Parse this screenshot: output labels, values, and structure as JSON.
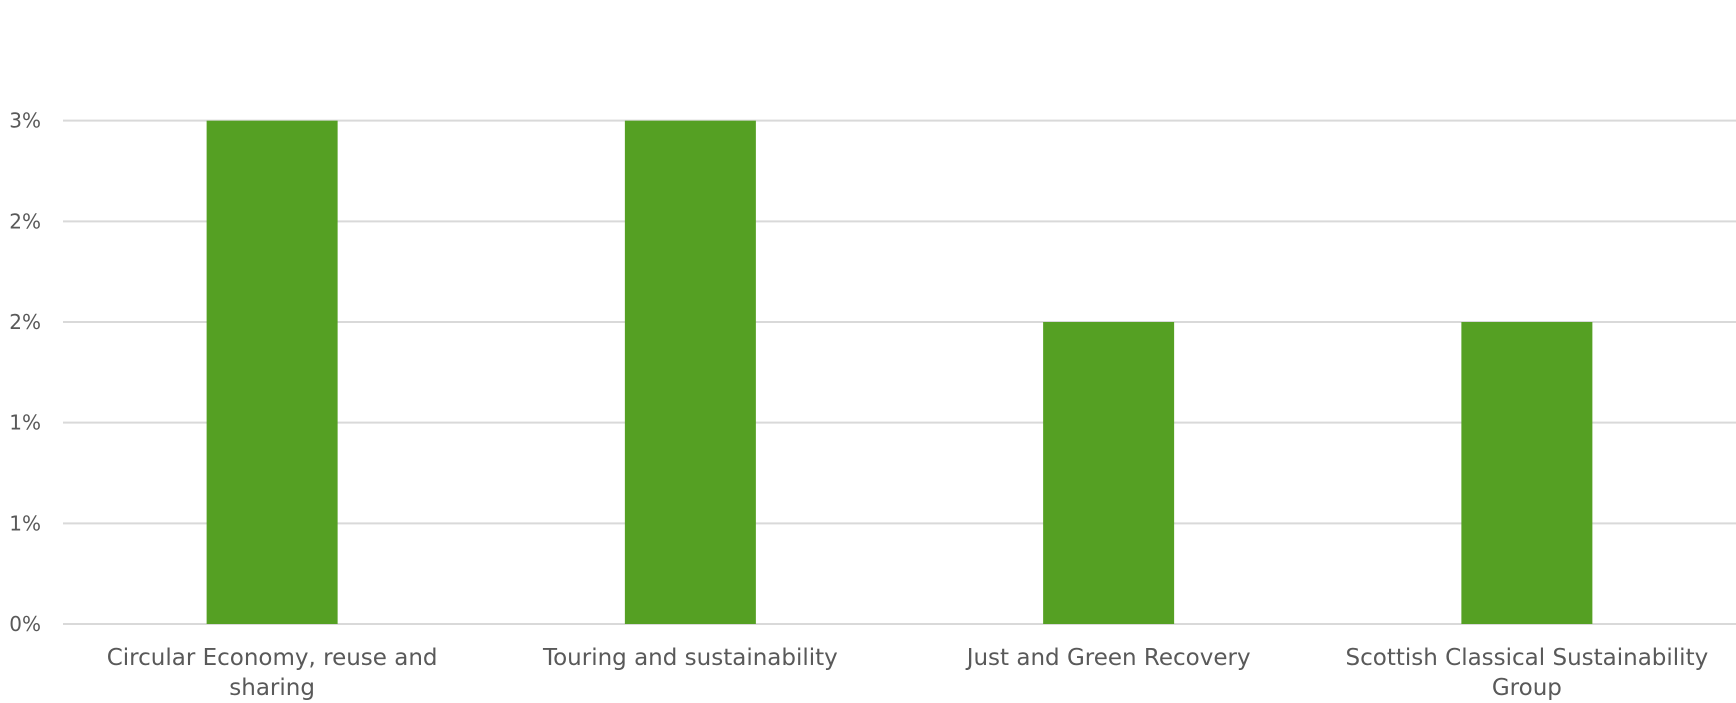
{
  "chart_data": {
    "type": "bar",
    "title": "",
    "xlabel": "",
    "ylabel": "",
    "categories": [
      [
        "Circular Economy, reuse and",
        "sharing"
      ],
      [
        "Touring and sustainability"
      ],
      [
        "Just and Green Recovery"
      ],
      [
        "Scottish Classical Sustainability",
        "Group"
      ]
    ],
    "values": [
      0.025,
      0.025,
      0.015,
      0.015
    ],
    "ylim": [
      0,
      0.03
    ],
    "yticks": [
      {
        "value": 0,
        "label": "0%"
      },
      {
        "value": 0.005,
        "label": "1%"
      },
      {
        "value": 0.01,
        "label": "1%"
      },
      {
        "value": 0.015,
        "label": "2%"
      },
      {
        "value": 0.02,
        "label": "2%"
      },
      {
        "value": 0.025,
        "label": "3%"
      }
    ],
    "bar_color": "#55a023",
    "grid": true,
    "legend": "none"
  }
}
